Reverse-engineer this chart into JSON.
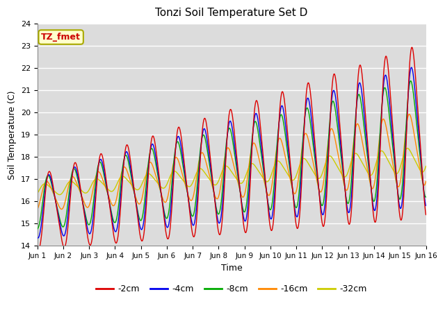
{
  "title": "Tonzi Soil Temperature Set D",
  "xlabel": "Time",
  "ylabel": "Soil Temperature (C)",
  "ylim": [
    14.0,
    24.0
  ],
  "yticks": [
    14.0,
    15.0,
    16.0,
    17.0,
    18.0,
    19.0,
    20.0,
    21.0,
    22.0,
    23.0,
    24.0
  ],
  "xtick_labels": [
    "Jun 1",
    "Jun 2",
    "Jun 3",
    "Jun 4",
    "Jun 5",
    "Jun 6",
    "Jun 7",
    "Jun 8",
    "Jun 9",
    "Jun 10",
    "Jun 11",
    "Jun 12",
    "Jun 13",
    "Jun 14",
    "Jun 15",
    "Jun 16"
  ],
  "legend_labels": [
    "-2cm",
    "-4cm",
    "-8cm",
    "-16cm",
    "-32cm"
  ],
  "legend_colors": [
    "#dd0000",
    "#0000ee",
    "#00aa00",
    "#ff8800",
    "#cccc00"
  ],
  "annotation_text": "TZ_fmet",
  "annotation_bg": "#ffffcc",
  "annotation_border": "#aaaa00",
  "annotation_text_color": "#cc0000",
  "fig_facecolor": "#ffffff",
  "plot_bg": "#dcdcdc",
  "grid_color": "#ffffff",
  "n_days": 15,
  "samples_per_day": 96
}
